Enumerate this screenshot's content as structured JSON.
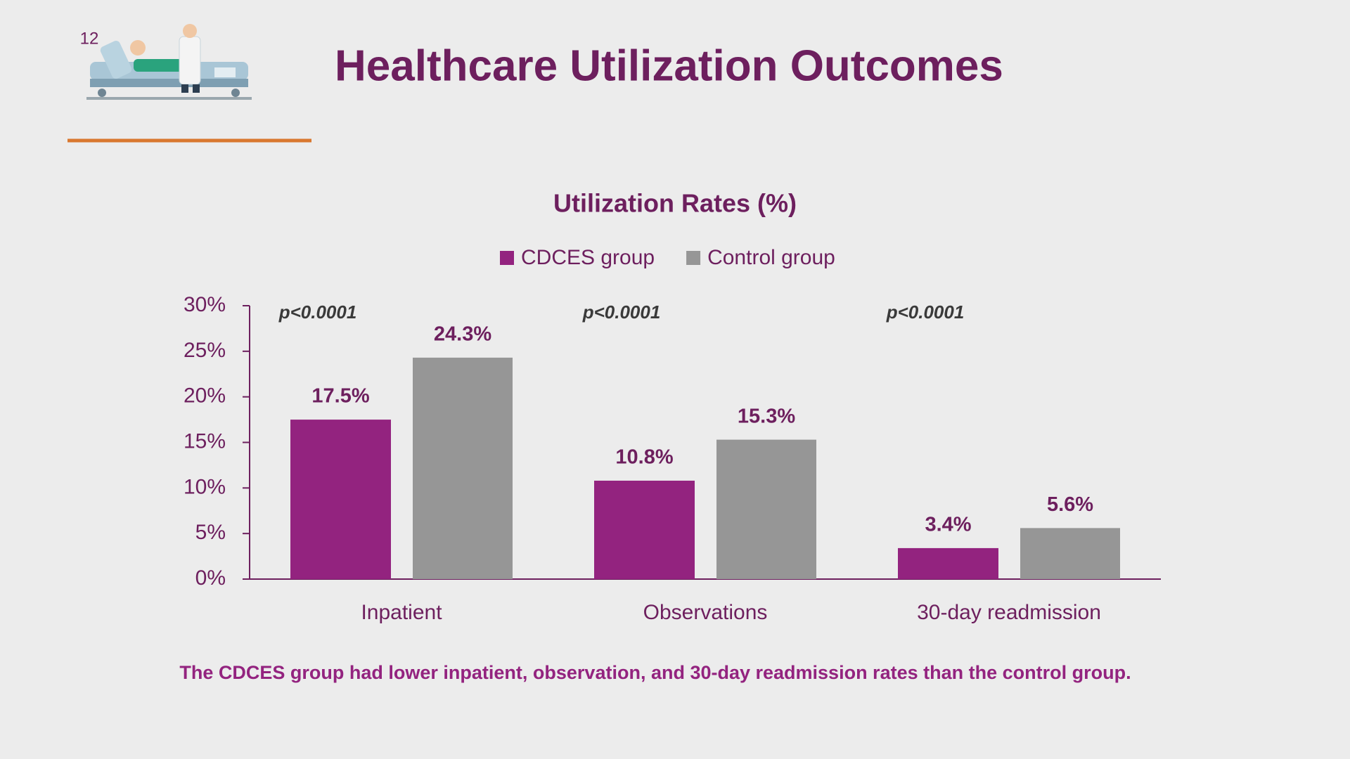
{
  "slide_number": "12",
  "title": "Healthcare Utilization Outcomes",
  "footnote": "The CDCES group had lower inpatient, observation, and 30-day readmission rates than the control group.",
  "chart_data": {
    "type": "bar",
    "title": "Utilization Rates (%)",
    "categories": [
      "Inpatient",
      "Observations",
      "30-day readmission"
    ],
    "series": [
      {
        "name": "CDCES group",
        "color": "#93237f",
        "values": [
          17.5,
          10.8,
          3.4
        ],
        "value_labels": [
          "17.5%",
          "10.8%",
          "3.4%"
        ]
      },
      {
        "name": "Control group",
        "color": "#969696",
        "values": [
          24.3,
          15.3,
          5.6
        ],
        "value_labels": [
          "24.3%",
          "15.3%",
          "5.6%"
        ]
      }
    ],
    "annotations": [
      "p<0.0001",
      "p<0.0001",
      "p<0.0001"
    ],
    "ylim": [
      0,
      30
    ],
    "yticks": [
      {
        "value": 0,
        "label": "0%"
      },
      {
        "value": 5,
        "label": "5%"
      },
      {
        "value": 10,
        "label": "10%"
      },
      {
        "value": 15,
        "label": "15%"
      },
      {
        "value": 20,
        "label": "20%"
      },
      {
        "value": 25,
        "label": "25%"
      },
      {
        "value": 30,
        "label": "30%"
      }
    ],
    "grid": false,
    "legend": "top"
  }
}
